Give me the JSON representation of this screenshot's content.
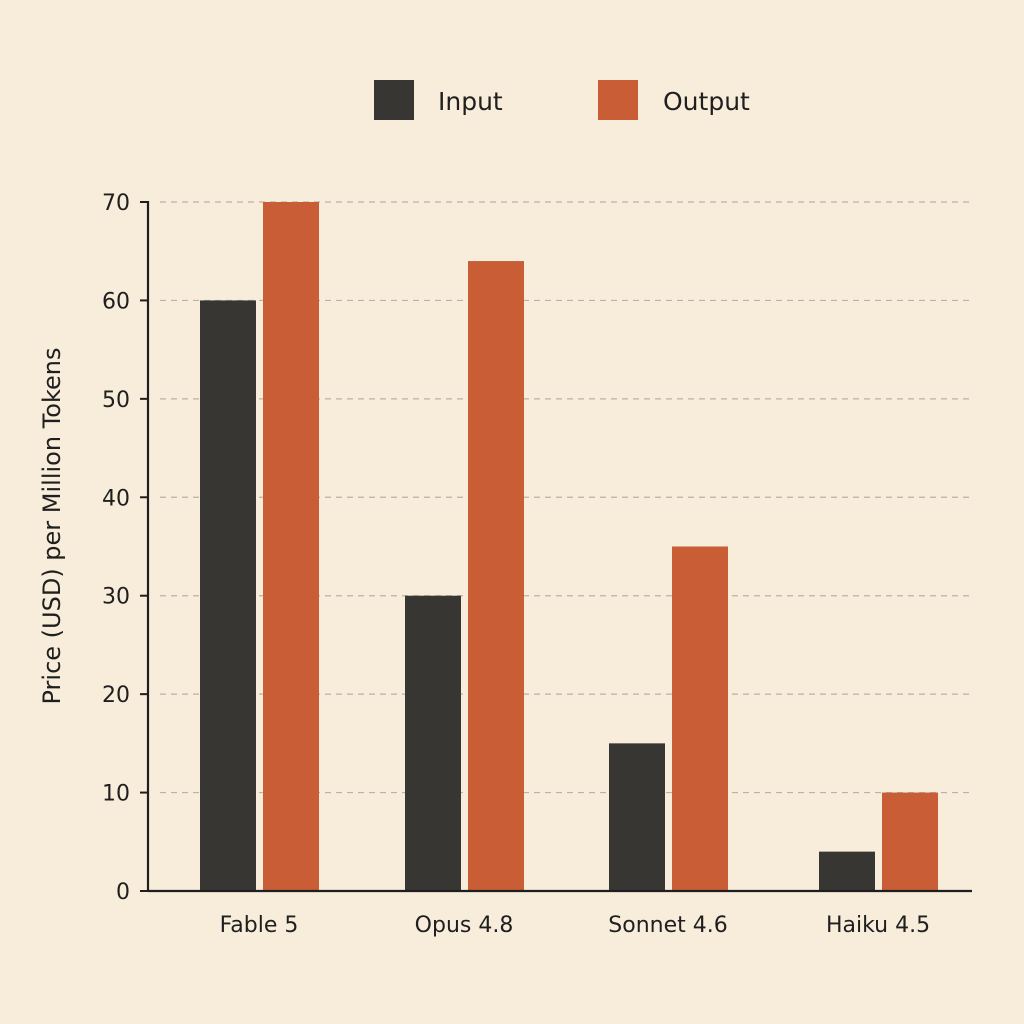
{
  "chart_data": {
    "type": "bar",
    "categories": [
      "Fable 5",
      "Opus 4.8",
      "Sonnet 4.6",
      "Haiku 4.5"
    ],
    "series": [
      {
        "name": "Input",
        "values": [
          60,
          30,
          15,
          4
        ],
        "color": "#373632"
      },
      {
        "name": "Output",
        "values": [
          70,
          64,
          35,
          10
        ],
        "color": "#c95d36"
      }
    ],
    "title": "",
    "xlabel": "",
    "ylabel": "Price (USD) per Million Tokens",
    "ylim": [
      0,
      70
    ],
    "yticks": [
      0,
      10,
      20,
      30,
      40,
      50,
      60,
      70
    ],
    "grid": true,
    "legend": "top-center"
  },
  "colors": {
    "background": "#f8ecdb",
    "gridline": "#b9b2a6",
    "axis": "#1f1f1f"
  }
}
